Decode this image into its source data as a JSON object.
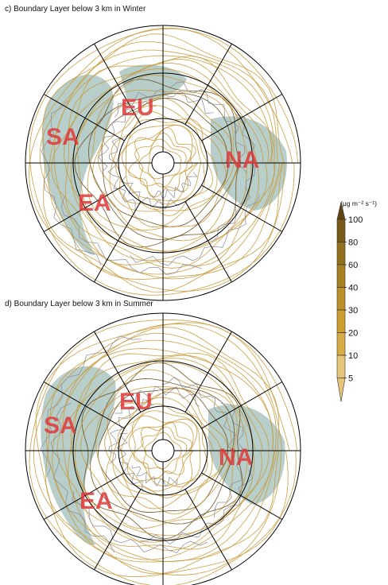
{
  "panels": [
    {
      "id": "c",
      "title": "c) Boundary Layer below 3 km in Winter",
      "regions": [
        "EU",
        "SA",
        "NA",
        "EA"
      ]
    },
    {
      "id": "d",
      "title": "d)  Boundary Layer below 3 km in Summer",
      "regions": [
        "EU",
        "SA",
        "NA",
        "EA"
      ]
    }
  ],
  "colorbar": {
    "unit": "(μg m⁻² s⁻¹)",
    "ticks": [
      "100",
      "80",
      "60",
      "40",
      "30",
      "20",
      "10",
      "5"
    ],
    "colors": [
      "#5e4512",
      "#7a5a17",
      "#94701d",
      "#a88124",
      "#bb902a",
      "#cc9e32",
      "#d8ad48",
      "#e6c47a"
    ]
  },
  "colors": {
    "streamline": "#c99a3a",
    "streamline_dark": "#6b4e1a",
    "coast": "#8a8a9a",
    "shade": "#9fbdb8",
    "region_label": "#e03a3a"
  }
}
